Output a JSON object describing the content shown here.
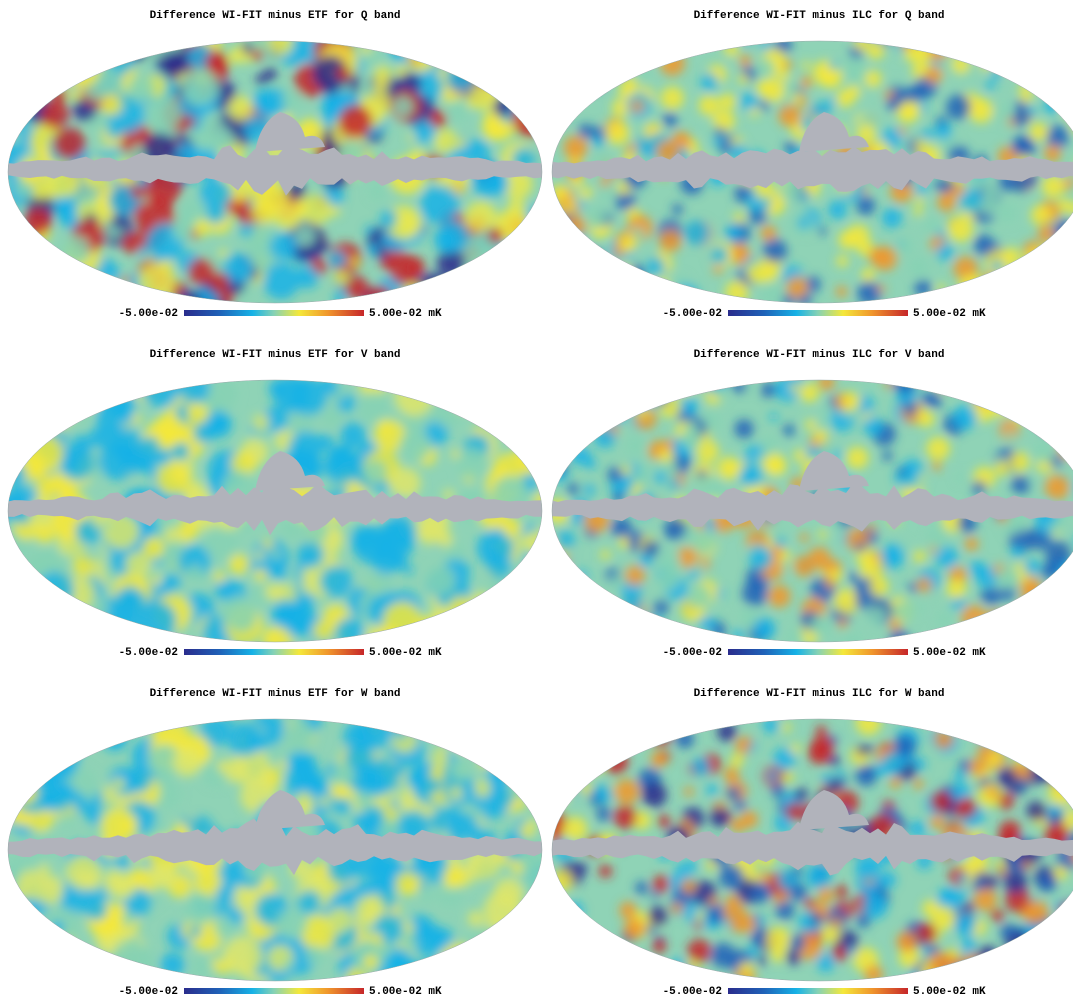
{
  "panels": [
    {
      "title": "Difference WI-FIT minus ETF for Q band",
      "colorbar_min": "-5.00e-02",
      "colorbar_max": "5.00e-02 mK"
    },
    {
      "title": "Difference WI-FIT minus ILC for Q band",
      "colorbar_min": "-5.00e-02",
      "colorbar_max": "5.00e-02 mK"
    },
    {
      "title": "Difference WI-FIT minus ETF for V band",
      "colorbar_min": "-5.00e-02",
      "colorbar_max": "5.00e-02 mK"
    },
    {
      "title": "Difference WI-FIT minus ILC for V band",
      "colorbar_min": "-5.00e-02",
      "colorbar_max": "5.00e-02 mK"
    },
    {
      "title": "Difference WI-FIT minus ETF for W band",
      "colorbar_min": "-5.00e-02",
      "colorbar_max": "5.00e-02 mK"
    },
    {
      "title": "Difference WI-FIT minus ILC for W band",
      "colorbar_min": "-5.00e-02",
      "colorbar_max": "5.00e-02 mK"
    }
  ]
}
